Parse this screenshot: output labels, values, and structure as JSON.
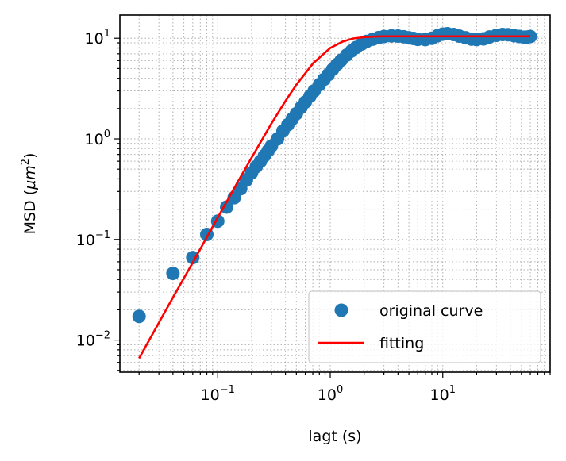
{
  "chart_data": {
    "type": "scatter",
    "xlabel": "lagt (s)",
    "ylabel_text": "MSD (",
    "ylabel_unit": "μm",
    "ylabel_exp": "2",
    "ylabel_close": ")",
    "x_scale": "log",
    "y_scale": "log",
    "xlim": [
      0.0135,
      90
    ],
    "ylim": [
      0.0048,
      17
    ],
    "x_ticks": [
      {
        "value": 0.1,
        "base": "10",
        "exp": "−1"
      },
      {
        "value": 1,
        "base": "10",
        "exp": "0"
      },
      {
        "value": 10,
        "base": "10",
        "exp": "1"
      }
    ],
    "y_ticks": [
      {
        "value": 0.01,
        "base": "10",
        "exp": "−2"
      },
      {
        "value": 0.1,
        "base": "10",
        "exp": "−1"
      },
      {
        "value": 1,
        "base": "10",
        "exp": "0"
      },
      {
        "value": 10,
        "base": "10",
        "exp": "1"
      }
    ],
    "grid": "on (major and minor, dotted)",
    "legend_position": "lower-right",
    "series": [
      {
        "name": "original curve",
        "kind": "scatter",
        "color": "#1f77b4",
        "points": [
          [
            0.02,
            0.0172
          ],
          [
            0.04,
            0.046
          ],
          [
            0.06,
            0.066
          ],
          [
            0.08,
            0.112
          ],
          [
            0.1,
            0.152
          ],
          [
            0.12,
            0.21
          ],
          [
            0.14,
            0.26
          ],
          [
            0.16,
            0.32
          ],
          [
            0.18,
            0.39
          ],
          [
            0.2,
            0.46
          ],
          [
            0.22,
            0.53
          ],
          [
            0.24,
            0.6
          ],
          [
            0.26,
            0.68
          ],
          [
            0.28,
            0.76
          ],
          [
            0.3,
            0.85
          ],
          [
            0.34,
            1.0
          ],
          [
            0.38,
            1.2
          ],
          [
            0.42,
            1.38
          ],
          [
            0.46,
            1.58
          ],
          [
            0.5,
            1.78
          ],
          [
            0.55,
            2.05
          ],
          [
            0.6,
            2.32
          ],
          [
            0.66,
            2.65
          ],
          [
            0.72,
            3.0
          ],
          [
            0.8,
            3.45
          ],
          [
            0.88,
            3.9
          ],
          [
            0.96,
            4.35
          ],
          [
            1.05,
            4.9
          ],
          [
            1.15,
            5.5
          ],
          [
            1.25,
            6.05
          ],
          [
            1.4,
            6.8
          ],
          [
            1.55,
            7.5
          ],
          [
            1.7,
            8.1
          ],
          [
            1.9,
            8.75
          ],
          [
            2.1,
            9.3
          ],
          [
            2.4,
            9.8
          ],
          [
            2.7,
            10.15
          ],
          [
            3.0,
            10.4
          ],
          [
            3.5,
            10.55
          ],
          [
            4.0,
            10.5
          ],
          [
            4.5,
            10.35
          ],
          [
            5.0,
            10.1
          ],
          [
            5.5,
            9.95
          ],
          [
            6.0,
            9.75
          ],
          [
            7.0,
            9.7
          ],
          [
            8.0,
            10.0
          ],
          [
            9.0,
            10.6
          ],
          [
            10.0,
            11.0
          ],
          [
            11.0,
            11.1
          ],
          [
            12.5,
            10.9
          ],
          [
            14.0,
            10.5
          ],
          [
            16.0,
            10.1
          ],
          [
            18.0,
            9.8
          ],
          [
            20.0,
            9.7
          ],
          [
            23.0,
            9.85
          ],
          [
            26.0,
            10.3
          ],
          [
            30.0,
            10.7
          ],
          [
            34.0,
            10.9
          ],
          [
            38.0,
            10.85
          ],
          [
            43.0,
            10.6
          ],
          [
            48.0,
            10.4
          ],
          [
            53.0,
            10.25
          ],
          [
            57.0,
            10.3
          ],
          [
            60.0,
            10.4
          ]
        ]
      },
      {
        "name": "fitting",
        "kind": "line",
        "color": "#ff0000",
        "points": [
          [
            0.02,
            0.0066
          ],
          [
            0.04,
            0.0265
          ],
          [
            0.06,
            0.059
          ],
          [
            0.1,
            0.165
          ],
          [
            0.15,
            0.37
          ],
          [
            0.2,
            0.65
          ],
          [
            0.3,
            1.42
          ],
          [
            0.4,
            2.38
          ],
          [
            0.5,
            3.45
          ],
          [
            0.7,
            5.6
          ],
          [
            1.0,
            8.0
          ],
          [
            1.3,
            9.3
          ],
          [
            1.6,
            9.95
          ],
          [
            2.0,
            10.25
          ],
          [
            2.5,
            10.4
          ],
          [
            3.0,
            10.45
          ],
          [
            5.0,
            10.45
          ],
          [
            10.0,
            10.45
          ],
          [
            30.0,
            10.45
          ],
          [
            60.0,
            10.45
          ]
        ]
      }
    ]
  }
}
